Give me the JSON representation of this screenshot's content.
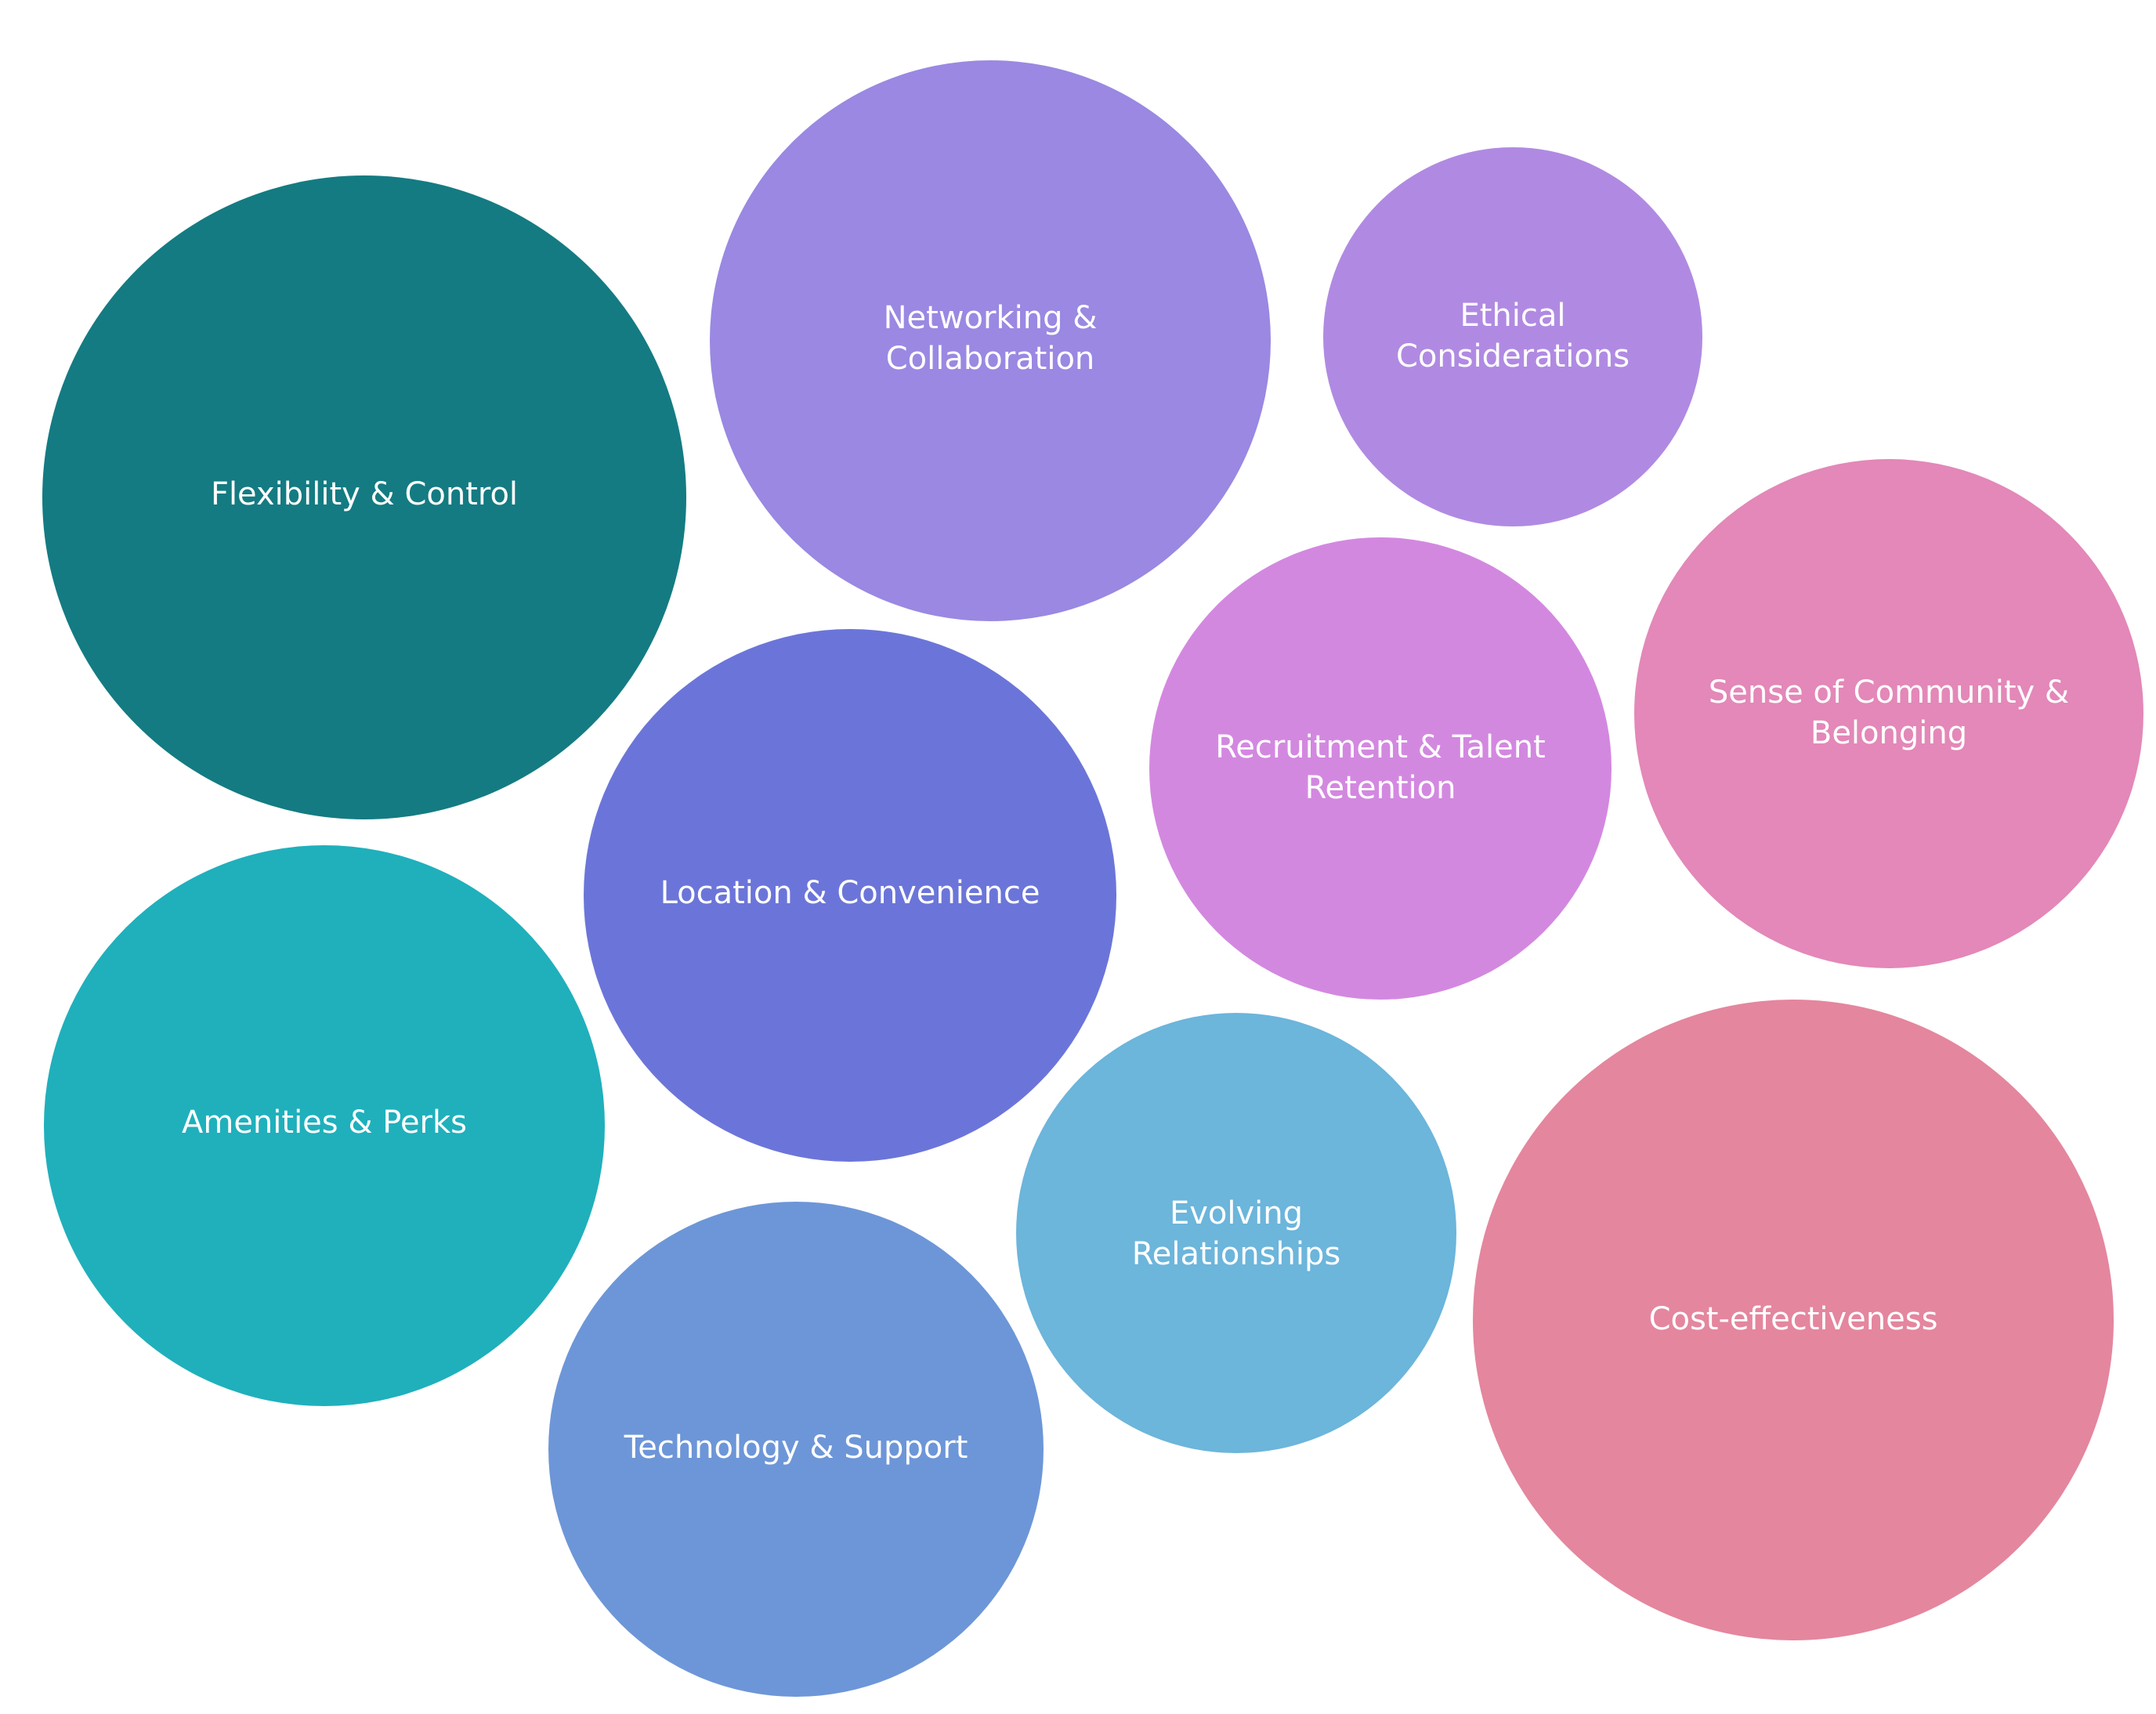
{
  "nodes": [
    {
      "lines": [
        "Flexibility & Control"
      ]
    },
    {
      "lines": [
        "Networking &",
        "Collaboration"
      ]
    },
    {
      "lines": [
        "Ethical",
        "Considerations"
      ]
    },
    {
      "lines": [
        "Location & Convenience"
      ]
    },
    {
      "lines": [
        "Recruitment & Talent",
        "Retention"
      ]
    },
    {
      "lines": [
        "Sense of Community &",
        "Belonging"
      ]
    },
    {
      "lines": [
        "Amenities & Perks"
      ]
    },
    {
      "lines": [
        "Evolving",
        "Relationships"
      ]
    },
    {
      "lines": [
        "Technology & Support"
      ]
    },
    {
      "lines": [
        "Cost-effectiveness"
      ]
    }
  ]
}
